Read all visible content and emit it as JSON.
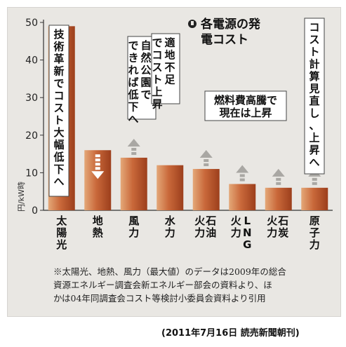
{
  "chart_data": {
    "type": "bar",
    "title": "各電源の発電コスト",
    "ylabel": "円/kW時",
    "ylim": [
      0,
      50
    ],
    "yticks": [
      "0",
      "10",
      "20",
      "30",
      "40",
      "50"
    ],
    "categories": [
      "太陽光",
      "地熱",
      "風力",
      "水力",
      "石油火力",
      "LNG火力",
      "石炭火力",
      "原子力"
    ],
    "values": [
      49,
      16,
      14,
      12,
      11,
      7,
      6,
      6
    ],
    "trend": [
      "down",
      "down",
      "up",
      "none",
      "up",
      "up",
      "up",
      "up"
    ],
    "bar_color": "#b6532a",
    "bar_highlight": "#e0a070",
    "annotations": [
      {
        "id": "solar",
        "text": "技術革新でコスト大幅低下へ"
      },
      {
        "id": "geo",
        "text": "自然公園でできれば低下へ"
      },
      {
        "id": "wind",
        "text": "適地不足でコスト上昇"
      },
      {
        "id": "fuel",
        "text": "燃料費高騰で現在は上昇"
      },
      {
        "id": "nuclear",
        "text": "コスト計算見直し、上昇へ"
      }
    ]
  },
  "notes": [
    "※太陽光、地熱、風力（最大値）のデータは2009年の総合",
    "資源エネルギー調査会新エネルギー部会の資料より、ほ",
    "かは04年同調査会コスト等検討小委員会資料より引用"
  ],
  "source": "(2011年7月16日 読売新聞朝刊)"
}
